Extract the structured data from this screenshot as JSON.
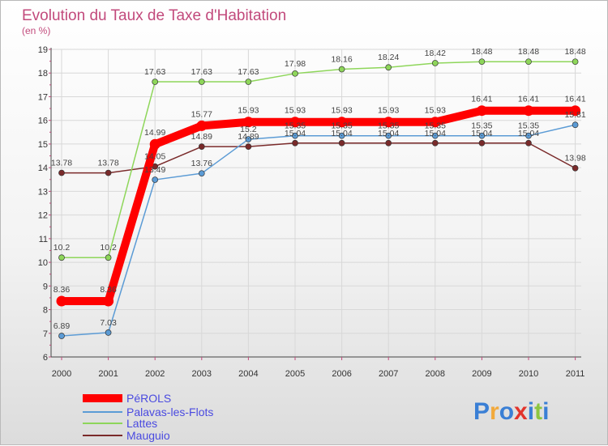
{
  "chart_data": {
    "type": "line",
    "title": "Evolution du Taux de Taxe d'Habitation",
    "subtitle": "(en %)",
    "x": [
      "2000",
      "2001",
      "2002",
      "2003",
      "2004",
      "2005",
      "2006",
      "2007",
      "2008",
      "2009",
      "2010",
      "2011"
    ],
    "ylim": [
      6,
      19
    ],
    "yticks": [
      "6",
      "7",
      "8",
      "9",
      "10",
      "11",
      "12",
      "13",
      "14",
      "15",
      "16",
      "17",
      "18",
      "19"
    ],
    "grid": true,
    "legend_position": "bottom-left",
    "series": [
      {
        "name": "PéROLS",
        "color": "#ff0000",
        "values": [
          8.36,
          8.36,
          14.99,
          15.77,
          15.93,
          15.93,
          15.93,
          15.93,
          15.93,
          16.41,
          16.41,
          16.41
        ],
        "labels": [
          "8.36",
          "8.36",
          "14.99",
          "15.77",
          "15.93",
          "15.93",
          "15.93",
          "15.93",
          "15.93",
          "16.41",
          "16.41",
          "16.41"
        ]
      },
      {
        "name": "Palavas-les-Flots",
        "color": "#5b9bd5",
        "values": [
          6.89,
          7.03,
          13.49,
          13.76,
          15.2,
          15.35,
          15.35,
          15.35,
          15.35,
          15.35,
          15.35,
          15.81
        ],
        "labels": [
          "6.89",
          "7.03",
          "13.49",
          "13.76",
          "15.2",
          "15.35",
          "15.35",
          "15.35",
          "15.35",
          "15.35",
          "15.35",
          "15.81"
        ]
      },
      {
        "name": "Lattes",
        "color": "#8ed65a",
        "values": [
          10.2,
          10.2,
          17.63,
          17.63,
          17.63,
          17.98,
          18.16,
          18.24,
          18.42,
          18.48,
          18.48,
          18.48
        ],
        "labels": [
          "10.2",
          "10.2",
          "17.63",
          "17.63",
          "17.63",
          "17.98",
          "18.16",
          "18.24",
          "18.42",
          "18.48",
          "18.48",
          "18.48"
        ]
      },
      {
        "name": "Mauguio",
        "color": "#7a2a2a",
        "values": [
          13.78,
          13.78,
          14.05,
          14.89,
          14.89,
          15.04,
          15.04,
          15.04,
          15.04,
          15.04,
          15.04,
          13.98
        ],
        "labels": [
          "13.78",
          "13.78",
          "14.05",
          "14.89",
          "14.89",
          "15.04",
          "15.04",
          "15.04",
          "15.04",
          "15.04",
          "15.04",
          "13.98"
        ]
      }
    ]
  },
  "logo": {
    "text": "Proxiti",
    "letters": [
      "P",
      "r",
      "o",
      "x",
      "i",
      "t",
      "i"
    ],
    "colors": [
      "#3a7fd5",
      "#f2a93b",
      "#3a7fd5",
      "#e2342c",
      "#3a7fd5",
      "#8cc540",
      "#3a7fd5"
    ]
  }
}
